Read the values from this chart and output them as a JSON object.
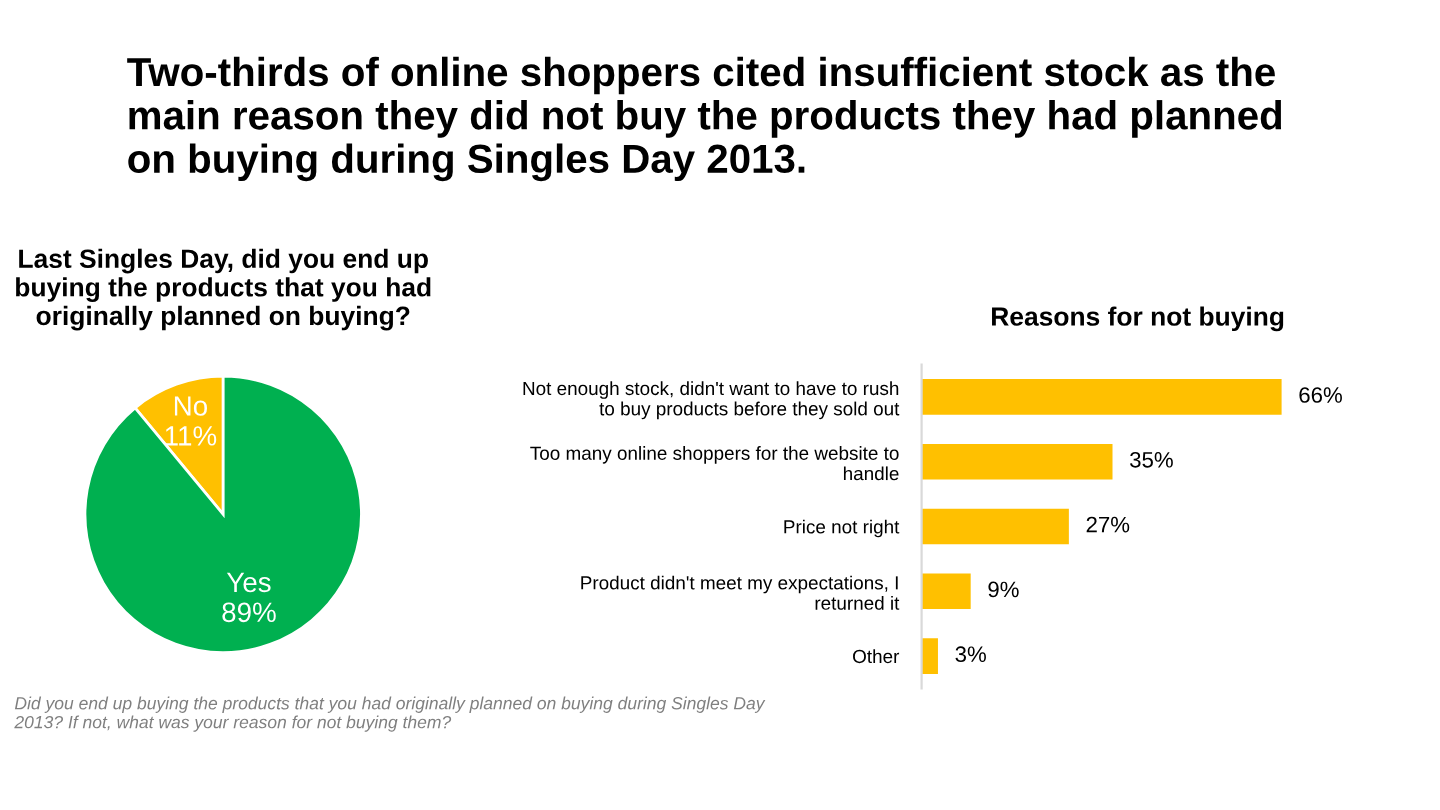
{
  "chart_data": [
    {
      "type": "pie",
      "title": "Last Singles Day, did you end up\nbuying the products that you had\noriginally planned on buying?",
      "categories": [
        "No",
        "Yes"
      ],
      "values": [
        11,
        89
      ],
      "colors": [
        "#ffc000",
        "#00b050"
      ],
      "value_labels": [
        "11%",
        "89%"
      ],
      "legend": false,
      "annotations": [
        "Two-thirds of online shoppers cited insufficient stock as the\nmain reason they did not buy the products they had planned\non buying during Singles Day 2013.",
        "Did you end up buying the products that you had originally planned on buying during Singles Day\n2013? If not, what was your reason for not buying them?"
      ]
    },
    {
      "type": "bar",
      "orientation": "horizontal",
      "title": "Reasons for not buying",
      "categories": [
        "Not enough stock, didn't want to have to rush\nto buy products before they sold out",
        "Too many online shoppers for the website to\nhandle",
        "Price not right",
        "Product didn't meet my expectations, I\nreturned it",
        "Other"
      ],
      "values": [
        66,
        35,
        27,
        9,
        3
      ],
      "color": "#ffc000",
      "value_labels": [
        "66%",
        "35%",
        "27%",
        "9%",
        "3%"
      ],
      "grid": false
    }
  ]
}
